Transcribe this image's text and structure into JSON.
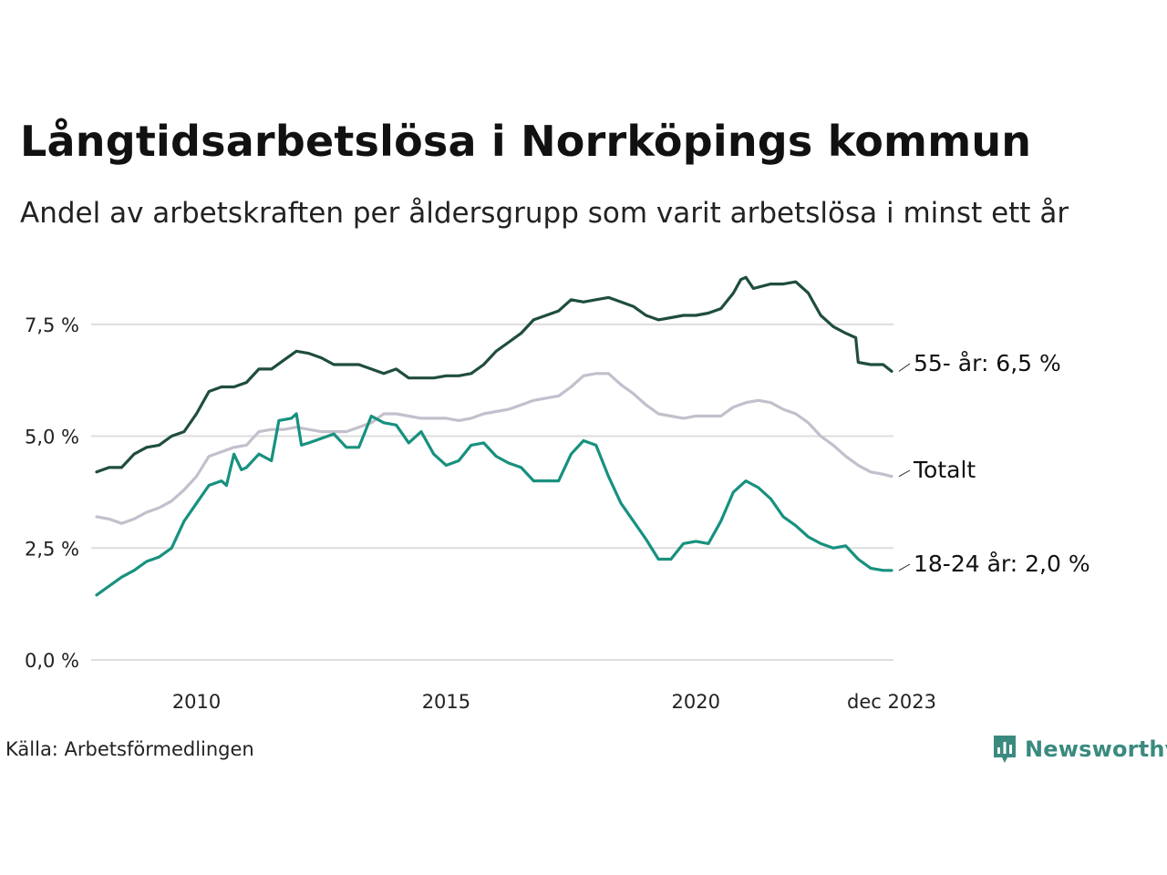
{
  "title": "Långtidsarbetslösa i Norrköpings kommun",
  "subtitle": "Andel av arbetskraften per åldersgrupp som varit arbetslösa i minst ett år",
  "source": "Källa: Arbetsförmedlingen",
  "brand": "Newsworthy",
  "colors": {
    "older": "#1f4d3e",
    "total": "#c4bfcc",
    "young": "#17917f",
    "grid": "#dddddd",
    "brand": "#3a8a7f"
  },
  "chart_data": {
    "type": "line",
    "xlim": [
      2008.0,
      2023.92
    ],
    "ylim": [
      0,
      8.8
    ],
    "grid": true,
    "y_ticks": [
      {
        "value": 0,
        "label": "0,0 %"
      },
      {
        "value": 2.5,
        "label": "2,5 %"
      },
      {
        "value": 5,
        "label": "5,0 %"
      },
      {
        "value": 7.5,
        "label": "7,5 %"
      }
    ],
    "x_ticks": [
      {
        "value": 2010,
        "label": "2010"
      },
      {
        "value": 2015,
        "label": "2015"
      },
      {
        "value": 2020,
        "label": "2020"
      },
      {
        "value": 2023.92,
        "label": "dec 2023"
      }
    ],
    "series": [
      {
        "name": "55- år",
        "label": "55- år: 6,5 %",
        "color_key": "older",
        "points": [
          [
            2008.0,
            4.2
          ],
          [
            2008.25,
            4.3
          ],
          [
            2008.5,
            4.3
          ],
          [
            2008.75,
            4.6
          ],
          [
            2009.0,
            4.75
          ],
          [
            2009.25,
            4.8
          ],
          [
            2009.5,
            5.0
          ],
          [
            2009.75,
            5.1
          ],
          [
            2010.0,
            5.5
          ],
          [
            2010.25,
            6.0
          ],
          [
            2010.5,
            6.1
          ],
          [
            2010.75,
            6.1
          ],
          [
            2011.0,
            6.2
          ],
          [
            2011.25,
            6.5
          ],
          [
            2011.5,
            6.5
          ],
          [
            2011.75,
            6.7
          ],
          [
            2012.0,
            6.9
          ],
          [
            2012.25,
            6.85
          ],
          [
            2012.5,
            6.75
          ],
          [
            2012.75,
            6.6
          ],
          [
            2013.0,
            6.6
          ],
          [
            2013.25,
            6.6
          ],
          [
            2013.5,
            6.5
          ],
          [
            2013.75,
            6.4
          ],
          [
            2014.0,
            6.5
          ],
          [
            2014.25,
            6.3
          ],
          [
            2014.5,
            6.3
          ],
          [
            2014.75,
            6.3
          ],
          [
            2015.0,
            6.35
          ],
          [
            2015.25,
            6.35
          ],
          [
            2015.5,
            6.4
          ],
          [
            2015.75,
            6.6
          ],
          [
            2016.0,
            6.9
          ],
          [
            2016.25,
            7.1
          ],
          [
            2016.5,
            7.3
          ],
          [
            2016.75,
            7.6
          ],
          [
            2017.0,
            7.7
          ],
          [
            2017.25,
            7.8
          ],
          [
            2017.5,
            8.05
          ],
          [
            2017.75,
            8.0
          ],
          [
            2018.0,
            8.05
          ],
          [
            2018.25,
            8.1
          ],
          [
            2018.5,
            8.0
          ],
          [
            2018.75,
            7.9
          ],
          [
            2019.0,
            7.7
          ],
          [
            2019.25,
            7.6
          ],
          [
            2019.5,
            7.65
          ],
          [
            2019.75,
            7.7
          ],
          [
            2020.0,
            7.7
          ],
          [
            2020.25,
            7.75
          ],
          [
            2020.5,
            7.85
          ],
          [
            2020.75,
            8.2
          ],
          [
            2020.9,
            8.5
          ],
          [
            2021.0,
            8.55
          ],
          [
            2021.15,
            8.3
          ],
          [
            2021.5,
            8.4
          ],
          [
            2021.75,
            8.4
          ],
          [
            2022.0,
            8.45
          ],
          [
            2022.25,
            8.2
          ],
          [
            2022.5,
            7.7
          ],
          [
            2022.75,
            7.45
          ],
          [
            2023.0,
            7.3
          ],
          [
            2023.2,
            7.2
          ],
          [
            2023.25,
            6.65
          ],
          [
            2023.5,
            6.6
          ],
          [
            2023.75,
            6.6
          ],
          [
            2023.92,
            6.45
          ]
        ]
      },
      {
        "name": "Totalt",
        "label": "Totalt",
        "color_key": "total",
        "points": [
          [
            2008.0,
            3.2
          ],
          [
            2008.25,
            3.15
          ],
          [
            2008.5,
            3.05
          ],
          [
            2008.75,
            3.15
          ],
          [
            2009.0,
            3.3
          ],
          [
            2009.25,
            3.4
          ],
          [
            2009.5,
            3.55
          ],
          [
            2009.75,
            3.8
          ],
          [
            2010.0,
            4.1
          ],
          [
            2010.25,
            4.55
          ],
          [
            2010.5,
            4.65
          ],
          [
            2010.75,
            4.75
          ],
          [
            2011.0,
            4.8
          ],
          [
            2011.25,
            5.1
          ],
          [
            2011.5,
            5.15
          ],
          [
            2011.75,
            5.15
          ],
          [
            2012.0,
            5.2
          ],
          [
            2012.25,
            5.15
          ],
          [
            2012.5,
            5.1
          ],
          [
            2012.75,
            5.1
          ],
          [
            2013.0,
            5.1
          ],
          [
            2013.25,
            5.2
          ],
          [
            2013.5,
            5.3
          ],
          [
            2013.75,
            5.5
          ],
          [
            2014.0,
            5.5
          ],
          [
            2014.25,
            5.45
          ],
          [
            2014.5,
            5.4
          ],
          [
            2014.75,
            5.4
          ],
          [
            2015.0,
            5.4
          ],
          [
            2015.25,
            5.35
          ],
          [
            2015.5,
            5.4
          ],
          [
            2015.75,
            5.5
          ],
          [
            2016.0,
            5.55
          ],
          [
            2016.25,
            5.6
          ],
          [
            2016.5,
            5.7
          ],
          [
            2016.75,
            5.8
          ],
          [
            2017.0,
            5.85
          ],
          [
            2017.25,
            5.9
          ],
          [
            2017.5,
            6.1
          ],
          [
            2017.75,
            6.35
          ],
          [
            2018.0,
            6.4
          ],
          [
            2018.25,
            6.4
          ],
          [
            2018.5,
            6.15
          ],
          [
            2018.75,
            5.95
          ],
          [
            2019.0,
            5.7
          ],
          [
            2019.25,
            5.5
          ],
          [
            2019.5,
            5.45
          ],
          [
            2019.75,
            5.4
          ],
          [
            2020.0,
            5.45
          ],
          [
            2020.25,
            5.45
          ],
          [
            2020.5,
            5.45
          ],
          [
            2020.75,
            5.65
          ],
          [
            2021.0,
            5.75
          ],
          [
            2021.25,
            5.8
          ],
          [
            2021.5,
            5.75
          ],
          [
            2021.75,
            5.6
          ],
          [
            2022.0,
            5.5
          ],
          [
            2022.25,
            5.3
          ],
          [
            2022.5,
            5.0
          ],
          [
            2022.75,
            4.8
          ],
          [
            2023.0,
            4.55
          ],
          [
            2023.25,
            4.35
          ],
          [
            2023.5,
            4.2
          ],
          [
            2023.75,
            4.15
          ],
          [
            2023.92,
            4.1
          ]
        ]
      },
      {
        "name": "18-24 år",
        "label": "18-24 år: 2,0 %",
        "color_key": "young",
        "points": [
          [
            2008.0,
            1.45
          ],
          [
            2008.25,
            1.65
          ],
          [
            2008.5,
            1.85
          ],
          [
            2008.75,
            2.0
          ],
          [
            2009.0,
            2.2
          ],
          [
            2009.25,
            2.3
          ],
          [
            2009.5,
            2.5
          ],
          [
            2009.75,
            3.1
          ],
          [
            2010.0,
            3.5
          ],
          [
            2010.25,
            3.9
          ],
          [
            2010.5,
            4.0
          ],
          [
            2010.6,
            3.9
          ],
          [
            2010.75,
            4.6
          ],
          [
            2010.9,
            4.25
          ],
          [
            2011.0,
            4.3
          ],
          [
            2011.25,
            4.6
          ],
          [
            2011.5,
            4.45
          ],
          [
            2011.65,
            5.35
          ],
          [
            2011.9,
            5.4
          ],
          [
            2012.0,
            5.5
          ],
          [
            2012.1,
            4.8
          ],
          [
            2012.25,
            4.85
          ],
          [
            2012.5,
            4.95
          ],
          [
            2012.75,
            5.05
          ],
          [
            2013.0,
            4.75
          ],
          [
            2013.25,
            4.75
          ],
          [
            2013.5,
            5.45
          ],
          [
            2013.75,
            5.3
          ],
          [
            2014.0,
            5.25
          ],
          [
            2014.25,
            4.85
          ],
          [
            2014.5,
            5.1
          ],
          [
            2014.75,
            4.6
          ],
          [
            2015.0,
            4.35
          ],
          [
            2015.25,
            4.45
          ],
          [
            2015.5,
            4.8
          ],
          [
            2015.75,
            4.85
          ],
          [
            2016.0,
            4.55
          ],
          [
            2016.25,
            4.4
          ],
          [
            2016.5,
            4.3
          ],
          [
            2016.75,
            4.0
          ],
          [
            2017.0,
            4.0
          ],
          [
            2017.25,
            4.0
          ],
          [
            2017.5,
            4.6
          ],
          [
            2017.75,
            4.9
          ],
          [
            2018.0,
            4.8
          ],
          [
            2018.25,
            4.1
          ],
          [
            2018.5,
            3.5
          ],
          [
            2018.75,
            3.1
          ],
          [
            2019.0,
            2.7
          ],
          [
            2019.25,
            2.25
          ],
          [
            2019.5,
            2.25
          ],
          [
            2019.75,
            2.6
          ],
          [
            2020.0,
            2.65
          ],
          [
            2020.25,
            2.6
          ],
          [
            2020.5,
            3.1
          ],
          [
            2020.75,
            3.75
          ],
          [
            2021.0,
            4.0
          ],
          [
            2021.25,
            3.85
          ],
          [
            2021.5,
            3.6
          ],
          [
            2021.75,
            3.2
          ],
          [
            2022.0,
            3.0
          ],
          [
            2022.25,
            2.75
          ],
          [
            2022.5,
            2.6
          ],
          [
            2022.75,
            2.5
          ],
          [
            2023.0,
            2.55
          ],
          [
            2023.25,
            2.25
          ],
          [
            2023.5,
            2.05
          ],
          [
            2023.75,
            2.0
          ],
          [
            2023.92,
            2.0
          ]
        ]
      }
    ]
  }
}
